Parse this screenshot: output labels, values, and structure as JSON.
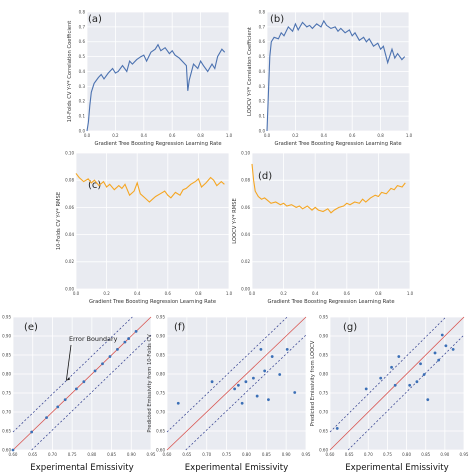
{
  "chart_data": [
    {
      "id": "a",
      "panel_label": "(a)",
      "type": "line",
      "color": "#4c72b0",
      "xlabel": "Gradient Tree Boosting Regression Learning Rate",
      "ylabel": "10-Folds CV Y-Y* Correlation Coefficient",
      "xlim": [
        0,
        1
      ],
      "ylim": [
        0,
        0.8
      ],
      "xticks": [
        "0.0",
        "0.2",
        "0.4",
        "0.6",
        "0.8",
        "1.0"
      ],
      "yticks": [
        "0.0",
        "0.1",
        "0.2",
        "0.3",
        "0.4",
        "0.5",
        "0.6",
        "0.7",
        "0.8"
      ],
      "x": [
        0.0,
        0.01,
        0.02,
        0.03,
        0.05,
        0.08,
        0.1,
        0.12,
        0.15,
        0.18,
        0.2,
        0.22,
        0.25,
        0.28,
        0.3,
        0.32,
        0.35,
        0.38,
        0.4,
        0.42,
        0.45,
        0.48,
        0.5,
        0.52,
        0.55,
        0.58,
        0.6,
        0.62,
        0.65,
        0.68,
        0.7,
        0.71,
        0.72,
        0.75,
        0.78,
        0.8,
        0.82,
        0.85,
        0.88,
        0.9,
        0.92,
        0.95,
        0.97
      ],
      "y": [
        0.0,
        0.06,
        0.17,
        0.26,
        0.32,
        0.36,
        0.38,
        0.35,
        0.39,
        0.42,
        0.39,
        0.4,
        0.44,
        0.4,
        0.47,
        0.45,
        0.48,
        0.5,
        0.51,
        0.47,
        0.53,
        0.55,
        0.58,
        0.54,
        0.56,
        0.52,
        0.54,
        0.51,
        0.49,
        0.46,
        0.44,
        0.27,
        0.34,
        0.45,
        0.42,
        0.47,
        0.44,
        0.4,
        0.45,
        0.42,
        0.5,
        0.55,
        0.53
      ]
    },
    {
      "id": "b",
      "panel_label": "(b)",
      "type": "line",
      "color": "#4c72b0",
      "xlabel": "Gradient Tree Boosting Regression Learning Rate",
      "ylabel": "LOOCV Y-Y* Correlation Coefficient",
      "xlim": [
        0,
        1
      ],
      "ylim": [
        0,
        0.8
      ],
      "xticks": [
        "0.0",
        "0.2",
        "0.4",
        "0.6",
        "0.8",
        "1.0"
      ],
      "yticks": [
        "0.0",
        "0.1",
        "0.2",
        "0.3",
        "0.4",
        "0.5",
        "0.6",
        "0.7",
        "0.8"
      ],
      "x": [
        0.0,
        0.01,
        0.02,
        0.03,
        0.05,
        0.08,
        0.1,
        0.12,
        0.15,
        0.18,
        0.2,
        0.22,
        0.25,
        0.28,
        0.3,
        0.32,
        0.35,
        0.38,
        0.4,
        0.42,
        0.45,
        0.48,
        0.5,
        0.52,
        0.55,
        0.58,
        0.6,
        0.62,
        0.65,
        0.68,
        0.7,
        0.72,
        0.75,
        0.78,
        0.8,
        0.82,
        0.85,
        0.88,
        0.9,
        0.92,
        0.95,
        0.97
      ],
      "y": [
        0.0,
        0.25,
        0.5,
        0.6,
        0.63,
        0.62,
        0.66,
        0.64,
        0.7,
        0.67,
        0.72,
        0.68,
        0.73,
        0.7,
        0.71,
        0.69,
        0.72,
        0.7,
        0.74,
        0.71,
        0.69,
        0.7,
        0.67,
        0.69,
        0.66,
        0.68,
        0.64,
        0.66,
        0.61,
        0.63,
        0.6,
        0.62,
        0.57,
        0.59,
        0.55,
        0.57,
        0.46,
        0.55,
        0.49,
        0.52,
        0.48,
        0.5
      ]
    },
    {
      "id": "c",
      "panel_label": "(c)",
      "type": "line",
      "color": "#f5a623",
      "xlabel": "Gradient Tree Boosting Regression Learning Rate",
      "ylabel": "10-Folds CV Y-Y* RMSE",
      "xlim": [
        0,
        1
      ],
      "ylim": [
        0,
        0.1
      ],
      "xticks": [
        "0.0",
        "0.2",
        "0.4",
        "0.6",
        "0.8",
        "1.0"
      ],
      "yticks": [
        "0.00",
        "0.02",
        "0.04",
        "0.06",
        "0.08",
        "0.10"
      ],
      "x": [
        0.0,
        0.02,
        0.05,
        0.08,
        0.1,
        0.12,
        0.15,
        0.18,
        0.2,
        0.22,
        0.25,
        0.28,
        0.3,
        0.32,
        0.35,
        0.38,
        0.4,
        0.42,
        0.45,
        0.48,
        0.5,
        0.52,
        0.55,
        0.58,
        0.6,
        0.62,
        0.65,
        0.68,
        0.7,
        0.72,
        0.75,
        0.78,
        0.8,
        0.82,
        0.85,
        0.88,
        0.9,
        0.92,
        0.95,
        0.97
      ],
      "y": [
        0.085,
        0.082,
        0.079,
        0.081,
        0.078,
        0.08,
        0.076,
        0.079,
        0.075,
        0.077,
        0.073,
        0.076,
        0.074,
        0.077,
        0.069,
        0.072,
        0.078,
        0.07,
        0.067,
        0.064,
        0.066,
        0.068,
        0.07,
        0.072,
        0.069,
        0.067,
        0.071,
        0.069,
        0.073,
        0.074,
        0.077,
        0.079,
        0.081,
        0.075,
        0.078,
        0.082,
        0.08,
        0.076,
        0.079,
        0.077
      ]
    },
    {
      "id": "d",
      "panel_label": "(d)",
      "type": "line",
      "color": "#f5a623",
      "xlabel": "Gradient Tree Boosting Regression Learning Rate",
      "ylabel": "LOOCV Y-Y* RMSE",
      "xlim": [
        0,
        1
      ],
      "ylim": [
        0,
        0.1
      ],
      "xticks": [
        "0.0",
        "0.2",
        "0.4",
        "0.6",
        "0.8",
        "1.0"
      ],
      "yticks": [
        "0.00",
        "0.02",
        "0.04",
        "0.06",
        "0.08",
        "0.10"
      ],
      "x": [
        0.0,
        0.01,
        0.02,
        0.04,
        0.06,
        0.08,
        0.1,
        0.12,
        0.15,
        0.18,
        0.2,
        0.22,
        0.25,
        0.28,
        0.3,
        0.32,
        0.35,
        0.38,
        0.4,
        0.42,
        0.45,
        0.48,
        0.5,
        0.52,
        0.55,
        0.58,
        0.6,
        0.62,
        0.65,
        0.68,
        0.7,
        0.72,
        0.75,
        0.78,
        0.8,
        0.82,
        0.85,
        0.88,
        0.9,
        0.92,
        0.95,
        0.97
      ],
      "y": [
        0.092,
        0.08,
        0.072,
        0.068,
        0.066,
        0.067,
        0.065,
        0.063,
        0.064,
        0.062,
        0.063,
        0.061,
        0.062,
        0.06,
        0.061,
        0.059,
        0.061,
        0.058,
        0.06,
        0.058,
        0.057,
        0.059,
        0.056,
        0.058,
        0.06,
        0.061,
        0.063,
        0.062,
        0.064,
        0.063,
        0.066,
        0.064,
        0.067,
        0.069,
        0.068,
        0.071,
        0.07,
        0.074,
        0.073,
        0.076,
        0.075,
        0.078
      ]
    },
    {
      "id": "e",
      "panel_label": "(e)",
      "type": "scatter",
      "xlabel": "Experimental Emissivity",
      "ylabel": "",
      "annotation": "Error Boundary",
      "xlim": [
        0.6,
        0.97
      ],
      "ylim": [
        0.6,
        0.97
      ],
      "xticks": [
        "0.60",
        "0.65",
        "0.70",
        "0.75",
        "0.80",
        "0.85",
        "0.90",
        "0.95"
      ],
      "yticks": [
        "0.60",
        "0.65",
        "0.70",
        "0.75",
        "0.80",
        "0.85",
        "0.90",
        "0.95"
      ],
      "x": [
        0.6,
        0.65,
        0.69,
        0.72,
        0.74,
        0.77,
        0.79,
        0.82,
        0.84,
        0.86,
        0.88,
        0.9,
        0.91,
        0.93
      ],
      "y": [
        0.6,
        0.65,
        0.69,
        0.72,
        0.74,
        0.77,
        0.79,
        0.82,
        0.84,
        0.86,
        0.88,
        0.9,
        0.91,
        0.93
      ],
      "boundary_offset": 0.05
    },
    {
      "id": "f",
      "panel_label": "(f)",
      "type": "scatter",
      "xlabel": "Experimental Emissivity",
      "ylabel": "Predicted Emissivity from 10-Folds CV",
      "xlim": [
        0.6,
        0.97
      ],
      "ylim": [
        0.6,
        0.97
      ],
      "xticks": [
        "0.60",
        "0.65",
        "0.70",
        "0.75",
        "0.80",
        "0.85",
        "0.90",
        "0.95"
      ],
      "yticks": [
        "0.60",
        "0.65",
        "0.70",
        "0.75",
        "0.80",
        "0.85",
        "0.90",
        "0.95"
      ],
      "x": [
        0.63,
        0.72,
        0.78,
        0.79,
        0.8,
        0.81,
        0.83,
        0.84,
        0.85,
        0.86,
        0.87,
        0.88,
        0.9,
        0.92,
        0.94
      ],
      "y": [
        0.73,
        0.79,
        0.77,
        0.78,
        0.73,
        0.79,
        0.8,
        0.75,
        0.88,
        0.82,
        0.74,
        0.86,
        0.81,
        0.88,
        0.76
      ],
      "boundary_offset": 0.05
    },
    {
      "id": "g",
      "panel_label": "(g)",
      "type": "scatter",
      "xlabel": "Experimental Emissivity",
      "ylabel": "Predicted Emissivity from LOOCV",
      "xlim": [
        0.6,
        0.97
      ],
      "ylim": [
        0.6,
        0.97
      ],
      "xticks": [
        "0.60",
        "0.65",
        "0.70",
        "0.75",
        "0.80",
        "0.85",
        "0.90",
        "0.95"
      ],
      "yticks": [
        "0.60",
        "0.65",
        "0.70",
        "0.75",
        "0.80",
        "0.85",
        "0.90",
        "0.95"
      ],
      "x": [
        0.62,
        0.7,
        0.74,
        0.77,
        0.78,
        0.79,
        0.82,
        0.84,
        0.85,
        0.86,
        0.87,
        0.89,
        0.9,
        0.91,
        0.92,
        0.94
      ],
      "y": [
        0.66,
        0.77,
        0.8,
        0.83,
        0.78,
        0.86,
        0.78,
        0.79,
        0.84,
        0.81,
        0.74,
        0.87,
        0.85,
        0.92,
        0.89,
        0.88
      ],
      "boundary_offset": 0.05
    }
  ]
}
